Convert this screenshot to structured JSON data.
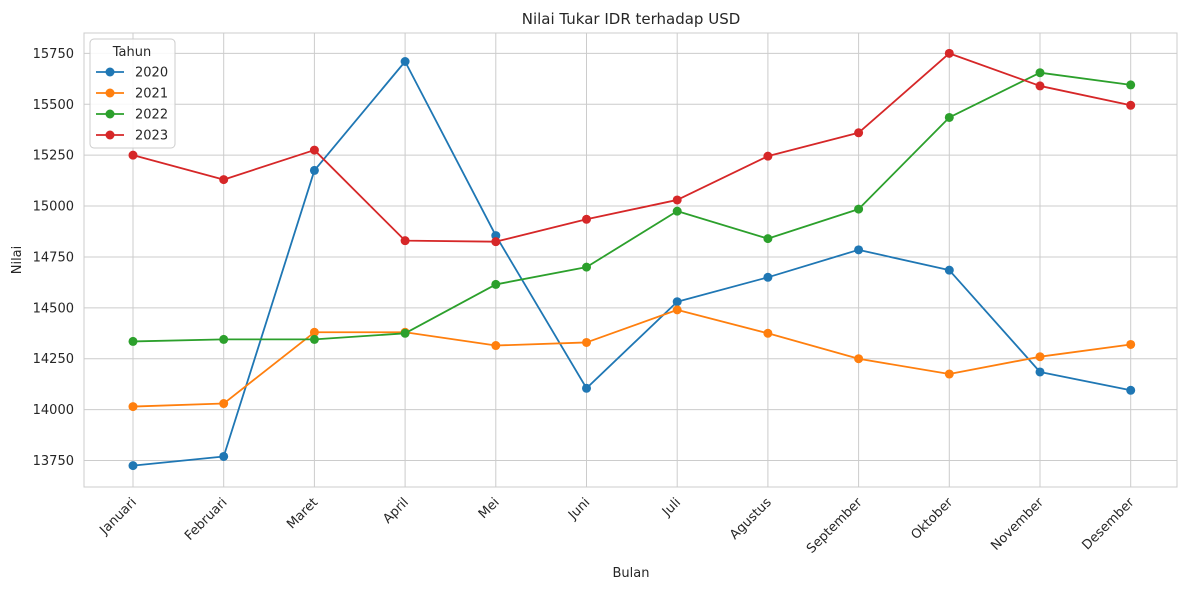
{
  "chart_data": {
    "type": "line",
    "title": "Nilai Tukar IDR terhadap USD",
    "xlabel": "Bulan",
    "ylabel": "Nilai",
    "categories": [
      "Januari",
      "Februari",
      "Maret",
      "April",
      "Mei",
      "Juni",
      "Juli",
      "Agustus",
      "September",
      "Oktober",
      "November",
      "Desember"
    ],
    "yticks": [
      13750,
      14000,
      14250,
      14500,
      14750,
      15000,
      15250,
      15500,
      15750
    ],
    "ylim": [
      13620,
      15850
    ],
    "grid": true,
    "legend": {
      "title": "Tahun",
      "placement": "top-left"
    },
    "series": [
      {
        "name": "2020",
        "color": "#1f77b4",
        "values": [
          13725,
          13770,
          15175,
          15710,
          14855,
          14105,
          14530,
          14650,
          14785,
          14685,
          14185,
          14095
        ]
      },
      {
        "name": "2021",
        "color": "#ff7f0e",
        "values": [
          14015,
          14030,
          14380,
          14380,
          14315,
          14330,
          14490,
          14375,
          14250,
          14175,
          14260,
          14320
        ]
      },
      {
        "name": "2022",
        "color": "#2ca02c",
        "values": [
          14335,
          14345,
          14345,
          14375,
          14615,
          14700,
          14975,
          14840,
          14985,
          15435,
          15655,
          15595
        ]
      },
      {
        "name": "2023",
        "color": "#d62728",
        "values": [
          15250,
          15130,
          15275,
          14830,
          14825,
          14935,
          15030,
          15245,
          15360,
          15750,
          15590,
          15495
        ]
      }
    ]
  }
}
